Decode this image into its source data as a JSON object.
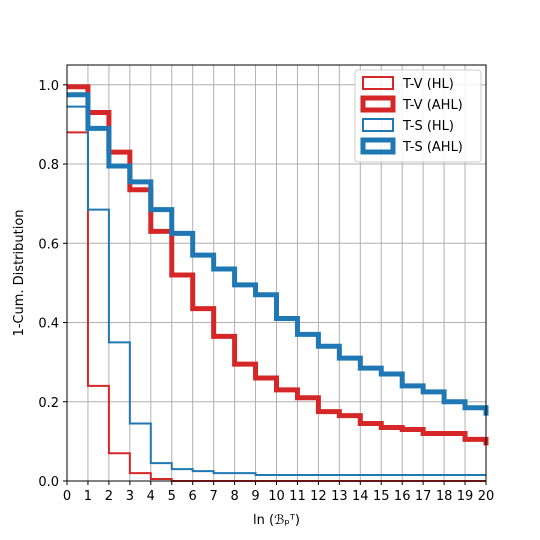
{
  "chart_data": {
    "type": "line",
    "drawstyle": "steps-post",
    "xlabel": "ln (ℬₚᵀ)",
    "ylabel": "1-Cum. Distribution",
    "xlim": [
      0,
      20
    ],
    "ylim": [
      0,
      1.05
    ],
    "xticks": [
      0,
      1,
      2,
      3,
      4,
      5,
      6,
      7,
      8,
      9,
      10,
      11,
      12,
      13,
      14,
      15,
      16,
      17,
      18,
      19,
      20
    ],
    "yticks": [
      0.0,
      0.2,
      0.4,
      0.6,
      0.8,
      1.0
    ],
    "ytick_labels": [
      "0.0",
      "0.2",
      "0.4",
      "0.6",
      "0.8",
      "1.0"
    ],
    "grid": true,
    "legend_position": "top-right",
    "x": [
      0,
      1,
      2,
      3,
      4,
      5,
      6,
      7,
      8,
      9,
      10,
      11,
      12,
      13,
      14,
      15,
      16,
      17,
      18,
      19,
      20
    ],
    "series": [
      {
        "name": "T-V (HL)",
        "color": "#d62728",
        "style": "thin",
        "values": [
          0.88,
          0.24,
          0.07,
          0.02,
          0.005,
          0.0,
          0.0,
          0.0,
          0.0,
          0.0,
          0.0,
          0.0,
          0.0,
          0.0,
          0.0,
          0.0,
          0.0,
          0.0,
          0.0,
          0.0,
          0.0
        ]
      },
      {
        "name": "T-V (AHL)",
        "color": "#d62728",
        "style": "thick",
        "values": [
          0.995,
          0.93,
          0.83,
          0.735,
          0.63,
          0.52,
          0.435,
          0.365,
          0.295,
          0.26,
          0.23,
          0.21,
          0.175,
          0.165,
          0.145,
          0.135,
          0.13,
          0.12,
          0.12,
          0.105,
          0.09
        ]
      },
      {
        "name": "T-S (HL)",
        "color": "#1f77b4",
        "style": "thin",
        "values": [
          0.945,
          0.685,
          0.35,
          0.145,
          0.045,
          0.03,
          0.025,
          0.02,
          0.02,
          0.015,
          0.015,
          0.015,
          0.015,
          0.015,
          0.015,
          0.015,
          0.015,
          0.015,
          0.015,
          0.015,
          0.015
        ]
      },
      {
        "name": "T-S (AHL)",
        "color": "#1f77b4",
        "style": "thick",
        "values": [
          0.975,
          0.89,
          0.795,
          0.755,
          0.685,
          0.625,
          0.57,
          0.535,
          0.495,
          0.47,
          0.41,
          0.37,
          0.34,
          0.31,
          0.285,
          0.27,
          0.24,
          0.225,
          0.2,
          0.185,
          0.165
        ]
      }
    ]
  }
}
